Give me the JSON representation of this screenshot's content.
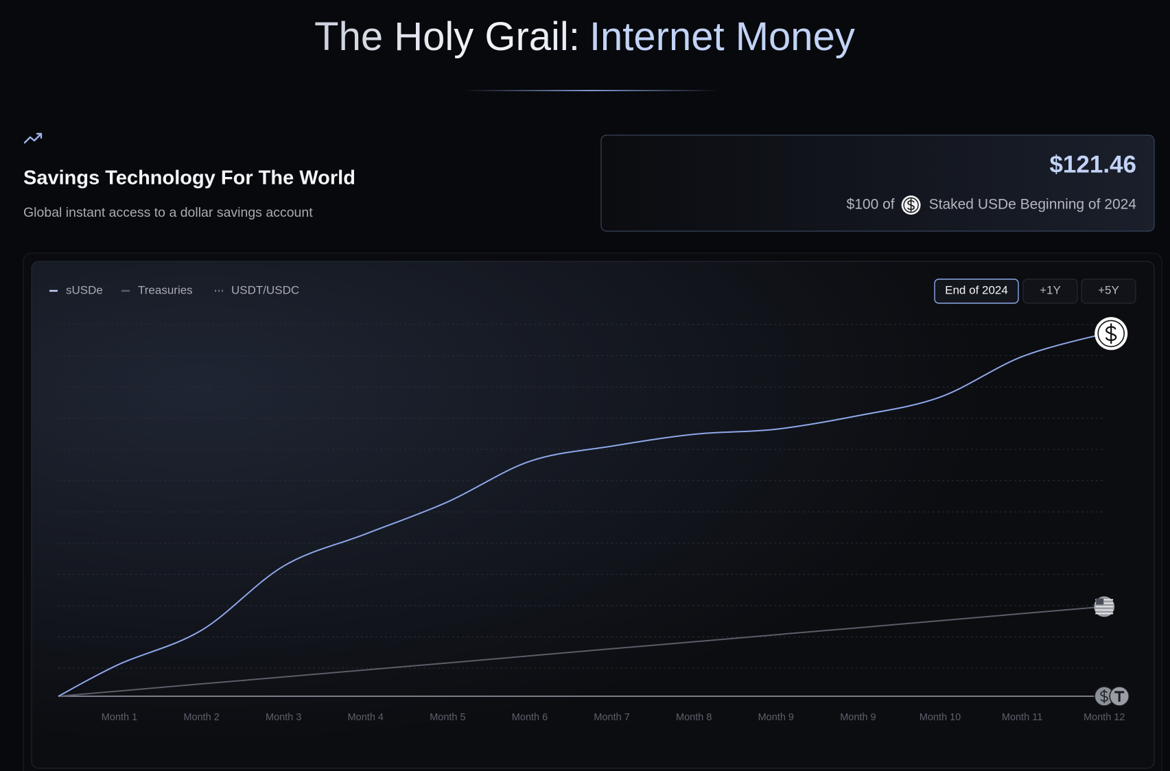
{
  "header": {
    "title_lead": "The Holy Grail:",
    "title_accent": "Internet Money"
  },
  "intro": {
    "heading": "Savings Technology For The World",
    "subheading": "Global instant access to a dollar savings account"
  },
  "card": {
    "amount": "$121.46",
    "prefix": "$100 of",
    "suffix": "Staked USDe Beginning of 2024"
  },
  "range_buttons": [
    "End of 2024",
    "+1Y",
    "+5Y"
  ],
  "chart_data": {
    "type": "line",
    "categories": [
      null,
      "Month 1",
      "Month 2",
      "Month 3",
      "Month 4",
      "Month 5",
      "Month 6",
      "Month 7",
      "Month 8",
      "Month 9",
      "Month 9",
      "Month 10",
      "Month 11",
      "Month 12"
    ],
    "series": [
      {
        "name": "sUSDe",
        "color": "#8ea8ea",
        "style": "solid",
        "values": [
          100,
          101.9,
          103.9,
          107.7,
          109.6,
          111.5,
          113.9,
          114.8,
          115.5,
          115.8,
          116.6,
          117.7,
          120.1,
          121.46
        ]
      },
      {
        "name": "Treasuries",
        "color": "#5a5e68",
        "style": "solid",
        "values": [
          100,
          100.31,
          100.73,
          101.14,
          101.56,
          101.97,
          102.39,
          102.81,
          103.22,
          103.64,
          104.05,
          104.47,
          104.89,
          105.3
        ]
      },
      {
        "name": "USDT/USDC",
        "color": "#7a7e88",
        "style": "dotted",
        "values": [
          100,
          100,
          100,
          100,
          100,
          100,
          100,
          100,
          100,
          100,
          100,
          100,
          100,
          100
        ]
      }
    ],
    "ylim": [
      100,
      122
    ],
    "grid": true,
    "smooth": true
  }
}
